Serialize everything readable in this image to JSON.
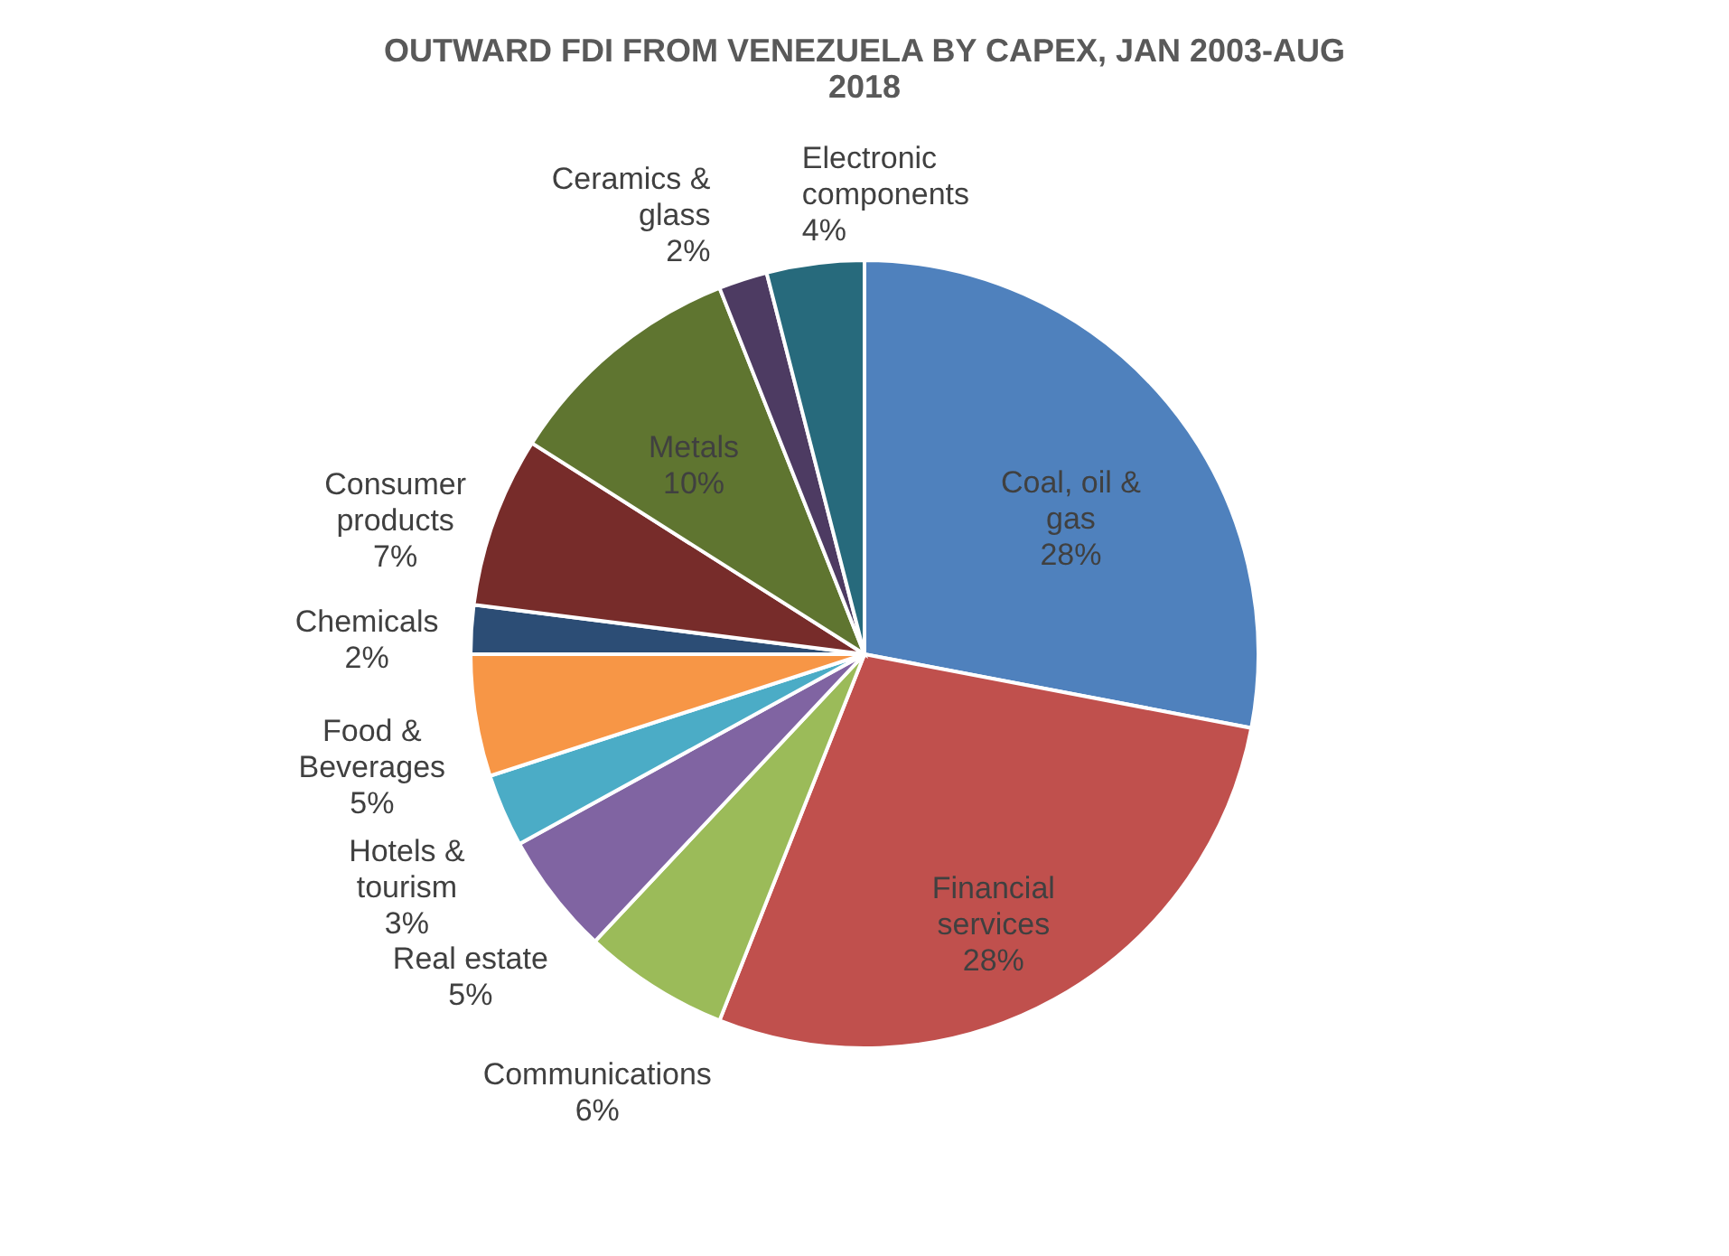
{
  "chart_data": {
    "type": "pie",
    "title": "OUTWARD FDI  FROM VENEZUELA BY CAPEX, JAN 2003-AUG 2018",
    "categories": [
      "Coal, oil & gas",
      "Financial services",
      "Communications",
      "Real estate",
      "Hotels & tourism",
      "Food & Beverages",
      "Chemicals",
      "Consumer products",
      "Metals",
      "Ceramics & glass",
      "Electronic components"
    ],
    "values": [
      28,
      28,
      6,
      5,
      3,
      5,
      2,
      7,
      10,
      2,
      4
    ],
    "colors": [
      "#4f81bd",
      "#c0504d",
      "#9bbb59",
      "#8064a2",
      "#4bacc6",
      "#f79646",
      "#2c4d75",
      "#772c2a",
      "#5f7530",
      "#4d3b62",
      "#276a7c"
    ],
    "value_labels": [
      "28%",
      "28%",
      "6%",
      "5%",
      "3%",
      "5%",
      "2%",
      "7%",
      "10%",
      "2%",
      "4%"
    ],
    "legend": false
  }
}
